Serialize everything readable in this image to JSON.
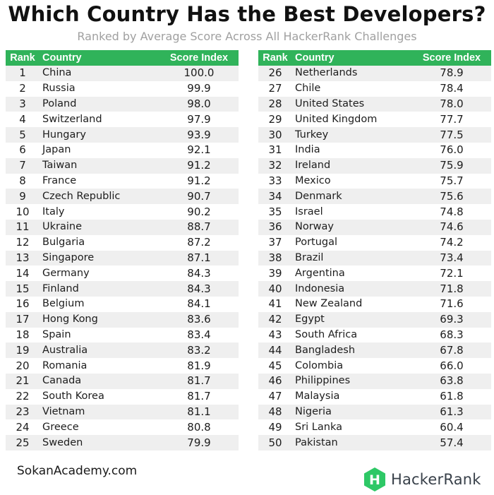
{
  "title": "Which Country Has the Best Developers?",
  "subtitle": "Ranked by Average Score Across All HackerRank Challenges",
  "colors": {
    "header_green": "#30b35a",
    "stripe": "#efefef",
    "logo_green": "#2ec866"
  },
  "chart_data": {
    "type": "table",
    "title": "Which Country Has the Best Developers?",
    "subtitle": "Ranked by Average Score Across All HackerRank Challenges",
    "columns": [
      "Rank",
      "Country",
      "Score Index"
    ],
    "rows": [
      [
        "1",
        "China",
        "100.0"
      ],
      [
        "2",
        "Russia",
        "99.9"
      ],
      [
        "3",
        "Poland",
        "98.0"
      ],
      [
        "4",
        "Switzerland",
        "97.9"
      ],
      [
        "5",
        "Hungary",
        "93.9"
      ],
      [
        "6",
        "Japan",
        "92.1"
      ],
      [
        "7",
        "Taiwan",
        "91.2"
      ],
      [
        "8",
        "France",
        "91.2"
      ],
      [
        "9",
        "Czech Republic",
        "90.7"
      ],
      [
        "10",
        "Italy",
        "90.2"
      ],
      [
        "11",
        "Ukraine",
        "88.7"
      ],
      [
        "12",
        "Bulgaria",
        "87.2"
      ],
      [
        "13",
        "Singapore",
        "87.1"
      ],
      [
        "14",
        "Germany",
        "84.3"
      ],
      [
        "15",
        "Finland",
        "84.3"
      ],
      [
        "16",
        "Belgium",
        "84.1"
      ],
      [
        "17",
        "Hong Kong",
        "83.6"
      ],
      [
        "18",
        "Spain",
        "83.4"
      ],
      [
        "19",
        "Australia",
        "83.2"
      ],
      [
        "20",
        "Romania",
        "81.9"
      ],
      [
        "21",
        "Canada",
        "81.7"
      ],
      [
        "22",
        "South Korea",
        "81.7"
      ],
      [
        "23",
        "Vietnam",
        "81.1"
      ],
      [
        "24",
        "Greece",
        "80.8"
      ],
      [
        "25",
        "Sweden",
        "79.9"
      ],
      [
        "26",
        "Netherlands",
        "78.9"
      ],
      [
        "27",
        "Chile",
        "78.4"
      ],
      [
        "28",
        "United States",
        "78.0"
      ],
      [
        "29",
        "United Kingdom",
        "77.7"
      ],
      [
        "30",
        "Turkey",
        "77.5"
      ],
      [
        "31",
        "India",
        "76.0"
      ],
      [
        "32",
        "Ireland",
        "75.9"
      ],
      [
        "33",
        "Mexico",
        "75.7"
      ],
      [
        "34",
        "Denmark",
        "75.6"
      ],
      [
        "35",
        "Israel",
        "74.8"
      ],
      [
        "36",
        "Norway",
        "74.6"
      ],
      [
        "37",
        "Portugal",
        "74.2"
      ],
      [
        "38",
        "Brazil",
        "73.4"
      ],
      [
        "39",
        "Argentina",
        "72.1"
      ],
      [
        "40",
        "Indonesia",
        "71.8"
      ],
      [
        "41",
        "New Zealand",
        "71.6"
      ],
      [
        "42",
        "Egypt",
        "69.3"
      ],
      [
        "43",
        "South Africa",
        "68.3"
      ],
      [
        "44",
        "Bangladesh",
        "67.8"
      ],
      [
        "45",
        "Colombia",
        "66.0"
      ],
      [
        "46",
        "Philippines",
        "63.8"
      ],
      [
        "47",
        "Malaysia",
        "61.8"
      ],
      [
        "48",
        "Nigeria",
        "61.3"
      ],
      [
        "49",
        "Sri Lanka",
        "60.4"
      ],
      [
        "50",
        "Pakistan",
        "57.4"
      ]
    ]
  },
  "watermark": "SokanAcademy.com",
  "brand": {
    "name": "HackerRank",
    "logo_icon": "hackerrank-hexagon-logo",
    "logo_letter": "H"
  }
}
